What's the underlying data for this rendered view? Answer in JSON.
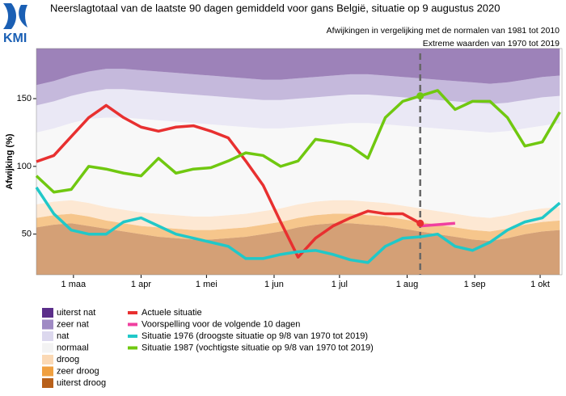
{
  "chart_data": {
    "type": "band-line",
    "title": "Neerslagtotaal van de laatste 90 dagen gemiddeld voor gans België, situatie op 9 augustus 2020",
    "subtitle": [
      "Afwijkingen in vergelijking met de normalen van 1981 tot 2010",
      "Extreme waarden van 1970 tot 2019"
    ],
    "logo": "KMI",
    "y_label": "Afwijking (%)",
    "xlim": [
      44,
      285
    ],
    "xticks": [
      {
        "value": 61,
        "label": "1 maa"
      },
      {
        "value": 92,
        "label": "1 apr"
      },
      {
        "value": 122,
        "label": "1 mei"
      },
      {
        "value": 153,
        "label": "1 jun"
      },
      {
        "value": 183,
        "label": "1 jul"
      },
      {
        "value": 214,
        "label": "1 aug"
      },
      {
        "value": 245,
        "label": "1 sep"
      },
      {
        "value": 275,
        "label": "1 okt"
      }
    ],
    "ylim": [
      20,
      187
    ],
    "yticks": [
      50,
      100,
      150
    ],
    "x": [
      44,
      52,
      60,
      68,
      76,
      84,
      92,
      100,
      108,
      116,
      124,
      132,
      140,
      148,
      156,
      164,
      172,
      180,
      188,
      196,
      204,
      212,
      220,
      228,
      236,
      244,
      252,
      260,
      268,
      276,
      284
    ],
    "bands": [
      {
        "name": "uiterst droog",
        "color": "#b8601a",
        "values": [
          55,
          57,
          58,
          56,
          54,
          52,
          50,
          48,
          47,
          46,
          46,
          47,
          48,
          50,
          52,
          55,
          57,
          58,
          58,
          57,
          56,
          54,
          52,
          50,
          48,
          46,
          45,
          47,
          50,
          52,
          53
        ]
      },
      {
        "name": "zeer droog",
        "color": "#f0a040",
        "values": [
          62,
          64,
          65,
          63,
          60,
          58,
          56,
          55,
          54,
          53,
          53,
          54,
          55,
          57,
          59,
          62,
          64,
          65,
          65,
          64,
          63,
          61,
          59,
          57,
          55,
          53,
          52,
          54,
          57,
          59,
          60
        ]
      },
      {
        "name": "droog",
        "color": "#fbd9b5",
        "values": [
          72,
          74,
          75,
          73,
          70,
          68,
          66,
          65,
          64,
          63,
          63,
          64,
          65,
          67,
          69,
          72,
          74,
          75,
          75,
          74,
          73,
          71,
          69,
          67,
          65,
          63,
          62,
          64,
          67,
          69,
          70
        ]
      },
      {
        "name": "normaal",
        "color": "#f3f3f3",
        "values": [
          125,
          128,
          132,
          135,
          136,
          136,
          135,
          134,
          133,
          132,
          131,
          130,
          129,
          128,
          128,
          129,
          130,
          131,
          132,
          132,
          131,
          130,
          129,
          128,
          127,
          126,
          125,
          126,
          128,
          130,
          132
        ]
      },
      {
        "name": "nat",
        "color": "#dcd8ee",
        "values": [
          145,
          148,
          152,
          155,
          157,
          157,
          156,
          155,
          154,
          153,
          152,
          151,
          150,
          149,
          149,
          150,
          151,
          152,
          153,
          153,
          152,
          151,
          150,
          149,
          148,
          147,
          146,
          147,
          149,
          151,
          152
        ]
      },
      {
        "name": "zeer nat",
        "color": "#9f8ac4",
        "values": [
          160,
          163,
          167,
          170,
          172,
          172,
          171,
          170,
          169,
          168,
          167,
          166,
          165,
          164,
          164,
          165,
          166,
          167,
          168,
          168,
          167,
          166,
          165,
          164,
          163,
          162,
          161,
          162,
          164,
          166,
          167
        ]
      },
      {
        "name": "uiterst nat",
        "color": "#5b2e8a"
      }
    ],
    "series": [
      {
        "name": "Actuele situatie",
        "color": "#e83030",
        "values": [
          103.5,
          108,
          122,
          136,
          145,
          136,
          129,
          126,
          129,
          130,
          126,
          121,
          104,
          86,
          59,
          33,
          47,
          56,
          62,
          67,
          65,
          65,
          58,
          null,
          null,
          null,
          null,
          null,
          null,
          null,
          null
        ]
      },
      {
        "name": "Voorspelling voor de volgende 10 dagen",
        "color": "#f040a0",
        "values": [
          null,
          null,
          null,
          null,
          null,
          null,
          null,
          null,
          null,
          null,
          null,
          null,
          null,
          null,
          null,
          null,
          null,
          null,
          null,
          null,
          null,
          null,
          56,
          57,
          58,
          null,
          null,
          null,
          null,
          null,
          null
        ]
      },
      {
        "name": "Situatie 1976 (droogste situatie op 9/8 van 1970 tot 2019)",
        "color": "#20c8c8",
        "values": [
          84.5,
          65,
          53,
          50,
          50,
          59,
          62,
          56,
          50,
          47,
          44,
          41,
          32,
          32,
          35,
          37,
          38,
          35,
          31,
          29,
          41,
          47,
          48,
          50,
          41,
          38,
          44,
          53,
          59,
          62,
          73
        ]
      },
      {
        "name": "Situatie 1987 (vochtigste situatie op 9/8 van 1970 tot 2019)",
        "color": "#70c810",
        "values": [
          93,
          81,
          83,
          100,
          98,
          95,
          93,
          106,
          95,
          98,
          99,
          104,
          110,
          108,
          100,
          104,
          120,
          118,
          115,
          106,
          136,
          148,
          152,
          156,
          142,
          148,
          148,
          136,
          115,
          118,
          140
        ]
      }
    ]
  }
}
